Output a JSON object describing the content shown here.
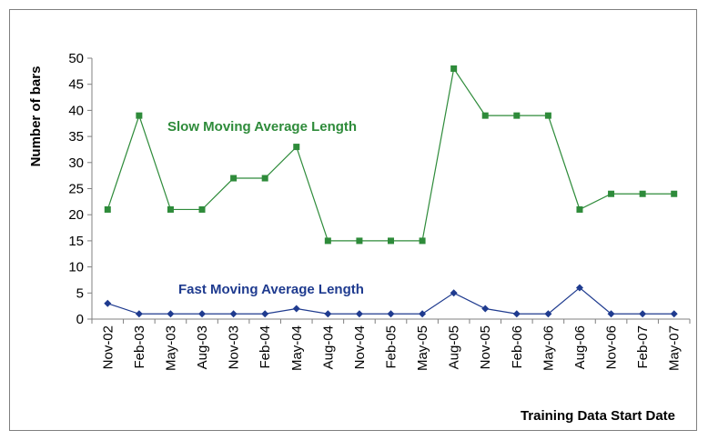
{
  "chart_data": {
    "type": "line",
    "xlabel": "Training Data Start Date",
    "ylabel": "Number of bars",
    "ylim": [
      0,
      50
    ],
    "yticks": [
      "0",
      "5",
      "10",
      "15",
      "20",
      "25",
      "30",
      "35",
      "40",
      "45",
      "50"
    ],
    "categories": [
      "Nov-02",
      "Feb-03",
      "May-03",
      "Aug-03",
      "Nov-03",
      "Feb-04",
      "May-04",
      "Aug-04",
      "Nov-04",
      "Feb-05",
      "May-05",
      "Aug-05",
      "Nov-05",
      "Feb-06",
      "May-06",
      "Aug-06",
      "Nov-06",
      "Feb-07",
      "May-07"
    ],
    "series": [
      {
        "name": "Slow Moving Average Length",
        "color": "#2e8b3a",
        "marker": "square",
        "values": [
          21,
          39,
          21,
          21,
          27,
          27,
          33,
          15,
          15,
          15,
          15,
          48,
          39,
          39,
          39,
          21,
          24,
          24,
          24
        ]
      },
      {
        "name": "Fast Moving Average Length",
        "color": "#1f3b8f",
        "marker": "diamond",
        "values": [
          3,
          1,
          1,
          1,
          1,
          1,
          2,
          1,
          1,
          1,
          1,
          5,
          2,
          1,
          1,
          6,
          1,
          1,
          1
        ]
      }
    ],
    "grid": false,
    "legend": "inline"
  }
}
